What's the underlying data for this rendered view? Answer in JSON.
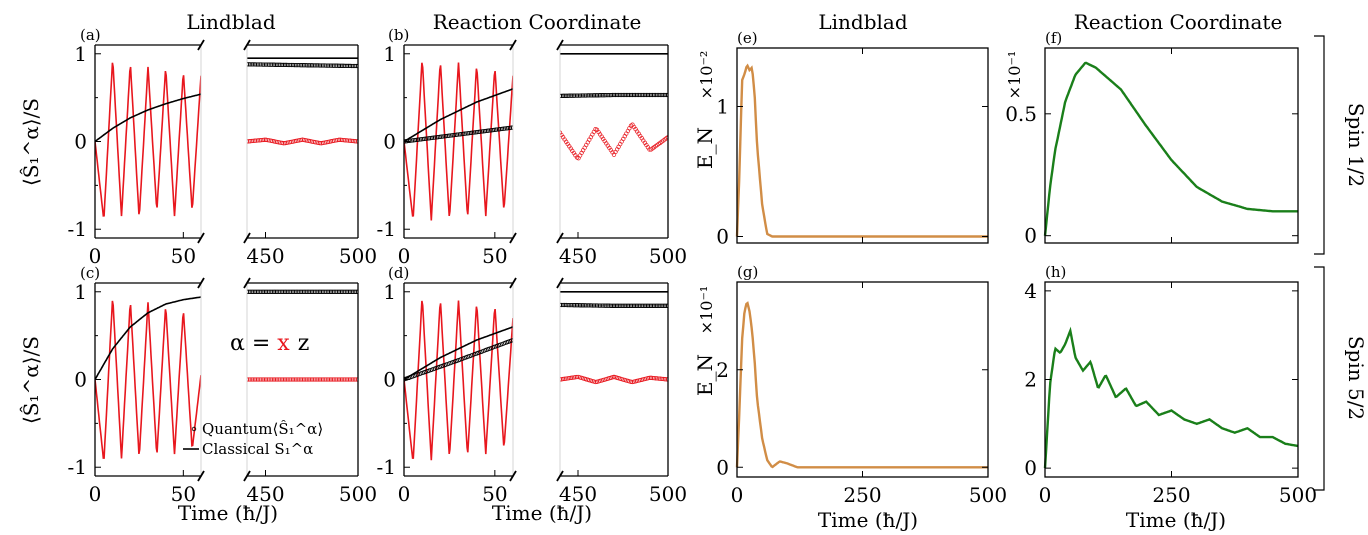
{
  "figure": {
    "column_titles": [
      "Lindblad",
      "Reaction Coordinate",
      "Lindblad",
      "Reaction Coordinate"
    ],
    "row_labels": [
      "Spin 1/2",
      "Spin 5/2"
    ],
    "panel_letters": [
      "(a)",
      "(b)",
      "(c)",
      "(d)",
      "(e)",
      "(f)",
      "(g)",
      "(h)"
    ],
    "xlabel": "Time (ħ/J)",
    "ylabel_left": "⟨Ŝ₁^α⟩/S",
    "ylabel_right": "E_N",
    "alpha_note": {
      "prefix": "α = ",
      "x": "x",
      "z": "z"
    },
    "legend": {
      "quantum": "Quantum⟨Ŝ₁^α⟩",
      "classical": "Classical S₁^α"
    },
    "sci_labels": [
      "×10⁻²",
      "×10⁻¹",
      "×10⁻¹"
    ]
  },
  "colors": {
    "x_component": "#e8171e",
    "z_component": "#000000",
    "lindblad_EN": "#d18d46",
    "rc_EN": "#1a7f1a"
  },
  "chart_data": [
    {
      "type": "line",
      "panel": "a",
      "title": "Lindblad",
      "xlabel": "Time (ħ/J)",
      "ylabel": "⟨Ŝ₁^α⟩/S",
      "xlim": [
        0,
        500
      ],
      "broken_axis": [
        [
          0,
          60
        ],
        [
          440,
          500
        ]
      ],
      "ylim": [
        -1.1,
        1.1
      ],
      "xticks": [
        0,
        50,
        450,
        500
      ],
      "yticks": [
        -1,
        0,
        1
      ],
      "series": [
        {
          "component": "x",
          "kind": "classical",
          "x": [
            0,
            5,
            10,
            15,
            20,
            25,
            30,
            35,
            40,
            45,
            50,
            55,
            60
          ],
          "y": [
            0,
            -0.9,
            0.95,
            -0.85,
            0.9,
            -0.88,
            0.85,
            -0.8,
            0.85,
            -0.85,
            0.8,
            -0.8,
            0.75
          ]
        },
        {
          "component": "z",
          "kind": "classical",
          "x": [
            0,
            10,
            20,
            30,
            40,
            50,
            60
          ],
          "y": [
            0,
            0.15,
            0.27,
            0.36,
            0.43,
            0.49,
            0.54
          ]
        },
        {
          "component": "x",
          "kind": "quantum",
          "x": [
            440,
            450,
            460,
            470,
            480,
            490,
            500
          ],
          "y": [
            0,
            0.02,
            -0.02,
            0.02,
            -0.02,
            0.02,
            0
          ]
        },
        {
          "component": "z",
          "kind": "quantum",
          "x": [
            440,
            470,
            500
          ],
          "y": [
            0.88,
            0.87,
            0.86
          ]
        },
        {
          "component": "z",
          "kind": "classical",
          "x": [
            440,
            470,
            500
          ],
          "y": [
            0.95,
            0.95,
            0.95
          ]
        }
      ]
    },
    {
      "type": "line",
      "panel": "b",
      "title": "Reaction Coordinate",
      "xlabel": "Time (ħ/J)",
      "ylabel": "⟨Ŝ₁^α⟩/S",
      "xlim": [
        0,
        500
      ],
      "broken_axis": [
        [
          0,
          60
        ],
        [
          440,
          500
        ]
      ],
      "ylim": [
        -1.1,
        1.1
      ],
      "xticks": [
        0,
        50,
        450,
        500
      ],
      "yticks": [
        -1,
        0,
        1
      ],
      "series": [
        {
          "component": "x",
          "kind": "classical",
          "x": [
            0,
            5,
            10,
            15,
            20,
            25,
            30,
            35,
            40,
            45,
            50,
            55,
            60
          ],
          "y": [
            0,
            -0.9,
            0.95,
            -0.9,
            0.92,
            -0.9,
            0.9,
            -0.88,
            0.88,
            -0.85,
            0.85,
            -0.8,
            0.75
          ]
        },
        {
          "component": "z",
          "kind": "classical",
          "x": [
            0,
            20,
            40,
            60
          ],
          "y": [
            0,
            0.25,
            0.45,
            0.6
          ]
        },
        {
          "component": "z",
          "kind": "quantum",
          "x": [
            0,
            30,
            60
          ],
          "y": [
            0,
            0.08,
            0.16
          ]
        },
        {
          "component": "x",
          "kind": "quantum",
          "x": [
            440,
            450,
            460,
            470,
            480,
            490,
            500
          ],
          "y": [
            0.1,
            -0.2,
            0.15,
            -0.15,
            0.2,
            -0.1,
            0.05
          ]
        },
        {
          "component": "z",
          "kind": "quantum",
          "x": [
            440,
            470,
            500
          ],
          "y": [
            0.52,
            0.53,
            0.53
          ]
        },
        {
          "component": "z",
          "kind": "classical",
          "x": [
            440,
            470,
            500
          ],
          "y": [
            1.0,
            1.0,
            1.0
          ]
        }
      ]
    },
    {
      "type": "line",
      "panel": "c",
      "xlabel": "Time (ħ/J)",
      "ylabel": "⟨Ŝ₁^α⟩/S",
      "xlim": [
        0,
        500
      ],
      "broken_axis": [
        [
          0,
          60
        ],
        [
          440,
          500
        ]
      ],
      "ylim": [
        -1.1,
        1.1
      ],
      "xticks": [
        0,
        50,
        450,
        500
      ],
      "yticks": [
        -1,
        0,
        1
      ],
      "series": [
        {
          "component": "x",
          "kind": "classical",
          "x": [
            0,
            5,
            10,
            15,
            20,
            25,
            30,
            35,
            40,
            45,
            50,
            55,
            60
          ],
          "y": [
            0,
            -0.95,
            0.95,
            -0.9,
            0.9,
            -0.9,
            0.88,
            -0.88,
            0.85,
            -0.85,
            0.8,
            -0.8,
            0.05
          ]
        },
        {
          "component": "z",
          "kind": "classical",
          "x": [
            0,
            10,
            20,
            30,
            40,
            50,
            60
          ],
          "y": [
            0,
            0.35,
            0.6,
            0.76,
            0.86,
            0.91,
            0.94
          ]
        },
        {
          "component": "x",
          "kind": "quantum",
          "x": [
            440,
            470,
            500
          ],
          "y": [
            0,
            0,
            0
          ]
        },
        {
          "component": "z",
          "kind": "quantum",
          "x": [
            440,
            470,
            500
          ],
          "y": [
            1.0,
            1.0,
            1.0
          ]
        }
      ]
    },
    {
      "type": "line",
      "panel": "d",
      "xlabel": "Time (ħ/J)",
      "ylabel": "⟨Ŝ₁^α⟩/S",
      "xlim": [
        0,
        500
      ],
      "broken_axis": [
        [
          0,
          60
        ],
        [
          440,
          500
        ]
      ],
      "ylim": [
        -1.1,
        1.1
      ],
      "xticks": [
        0,
        50,
        450,
        500
      ],
      "yticks": [
        -1,
        0,
        1
      ],
      "series": [
        {
          "component": "x",
          "kind": "classical",
          "x": [
            0,
            5,
            10,
            15,
            20,
            25,
            30,
            35,
            40,
            45,
            50,
            55,
            60
          ],
          "y": [
            0,
            -0.95,
            0.95,
            -0.92,
            0.92,
            -0.9,
            0.9,
            -0.88,
            0.88,
            -0.85,
            0.85,
            -0.8,
            0.7
          ]
        },
        {
          "component": "z",
          "kind": "classical",
          "x": [
            0,
            20,
            40,
            60
          ],
          "y": [
            0,
            0.25,
            0.45,
            0.6
          ]
        },
        {
          "component": "z",
          "kind": "quantum",
          "x": [
            0,
            30,
            60
          ],
          "y": [
            0,
            0.22,
            0.45
          ]
        },
        {
          "component": "x",
          "kind": "quantum",
          "x": [
            440,
            450,
            460,
            470,
            480,
            490,
            500
          ],
          "y": [
            0,
            0.03,
            -0.03,
            0.03,
            -0.03,
            0.02,
            0
          ]
        },
        {
          "component": "z",
          "kind": "quantum",
          "x": [
            440,
            470,
            500
          ],
          "y": [
            0.85,
            0.84,
            0.84
          ]
        },
        {
          "component": "z",
          "kind": "classical",
          "x": [
            440,
            470,
            500
          ],
          "y": [
            1.0,
            1.0,
            1.0
          ]
        }
      ]
    },
    {
      "type": "line",
      "panel": "e",
      "title": "Lindblad",
      "ylabel": "E_N",
      "scale_label": "×10⁻²",
      "xlim": [
        0,
        500
      ],
      "ylim": [
        -0.05,
        1.45
      ],
      "xticks": [
        0,
        250,
        500
      ],
      "yticks": [
        0,
        1
      ],
      "series": [
        {
          "x": [
            0,
            5,
            10,
            15,
            20,
            25,
            30,
            35,
            40,
            50,
            60,
            70,
            100,
            200,
            300,
            400,
            500
          ],
          "y": [
            0,
            0.5,
            1.2,
            1.25,
            1.32,
            1.28,
            1.3,
            1.1,
            0.7,
            0.25,
            0.02,
            0,
            0,
            0,
            0,
            0,
            0
          ]
        }
      ]
    },
    {
      "type": "line",
      "panel": "f",
      "title": "Reaction Coordinate",
      "xlabel": "",
      "scale_label": "×10⁻¹",
      "xlim": [
        0,
        500
      ],
      "ylim": [
        -0.03,
        0.77
      ],
      "xticks": [
        0,
        250,
        500
      ],
      "yticks": [
        0.0,
        0.5
      ],
      "series": [
        {
          "x": [
            0,
            10,
            20,
            40,
            60,
            80,
            100,
            150,
            200,
            250,
            300,
            350,
            400,
            450,
            480,
            500
          ],
          "y": [
            0,
            0.2,
            0.35,
            0.55,
            0.66,
            0.71,
            0.69,
            0.6,
            0.45,
            0.31,
            0.2,
            0.14,
            0.11,
            0.1,
            0.1,
            0.1
          ]
        }
      ]
    },
    {
      "type": "line",
      "panel": "g",
      "ylabel": "E_N",
      "xlabel": "Time (ħ/J)",
      "scale_label": "×10⁻¹",
      "xlim": [
        0,
        500
      ],
      "ylim": [
        -0.2,
        3.8
      ],
      "xticks": [
        0,
        250,
        500
      ],
      "yticks": [
        0,
        2
      ],
      "series": [
        {
          "x": [
            0,
            5,
            10,
            15,
            20,
            25,
            30,
            35,
            40,
            50,
            60,
            70,
            85,
            100,
            120,
            200,
            300,
            400,
            500
          ],
          "y": [
            0,
            1.2,
            2.6,
            3.2,
            3.4,
            3.2,
            2.8,
            2.2,
            1.4,
            0.6,
            0.15,
            0,
            0.12,
            0.08,
            0,
            0,
            0,
            0,
            0
          ]
        }
      ]
    },
    {
      "type": "line",
      "panel": "h",
      "title": "",
      "xlabel": "Time (ħ/J)",
      "xlim": [
        0,
        500
      ],
      "ylim": [
        -0.2,
        4.2
      ],
      "xticks": [
        0,
        250,
        500
      ],
      "yticks": [
        0,
        2,
        4
      ],
      "series": [
        {
          "x": [
            0,
            10,
            20,
            30,
            40,
            50,
            60,
            75,
            90,
            105,
            120,
            140,
            160,
            180,
            200,
            225,
            250,
            275,
            300,
            325,
            350,
            375,
            400,
            425,
            450,
            475,
            500
          ],
          "y": [
            0,
            1.9,
            2.7,
            2.6,
            2.8,
            3.1,
            2.5,
            2.2,
            2.4,
            1.8,
            2.1,
            1.6,
            1.8,
            1.4,
            1.5,
            1.2,
            1.3,
            1.1,
            1.0,
            1.1,
            0.9,
            0.8,
            0.9,
            0.7,
            0.7,
            0.55,
            0.5
          ]
        }
      ]
    }
  ]
}
